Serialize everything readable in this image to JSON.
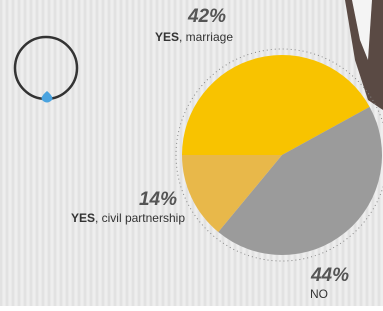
{
  "chart_data": {
    "type": "pie",
    "categories": [
      "YES, marriage",
      "NO",
      "YES, civil partnership"
    ],
    "values": [
      42,
      44,
      14
    ],
    "value_labels": [
      "42%",
      "44%",
      "14%"
    ],
    "colors": [
      "#f8c300",
      "#9b9b9b",
      "#e8b84a"
    ]
  }
}
